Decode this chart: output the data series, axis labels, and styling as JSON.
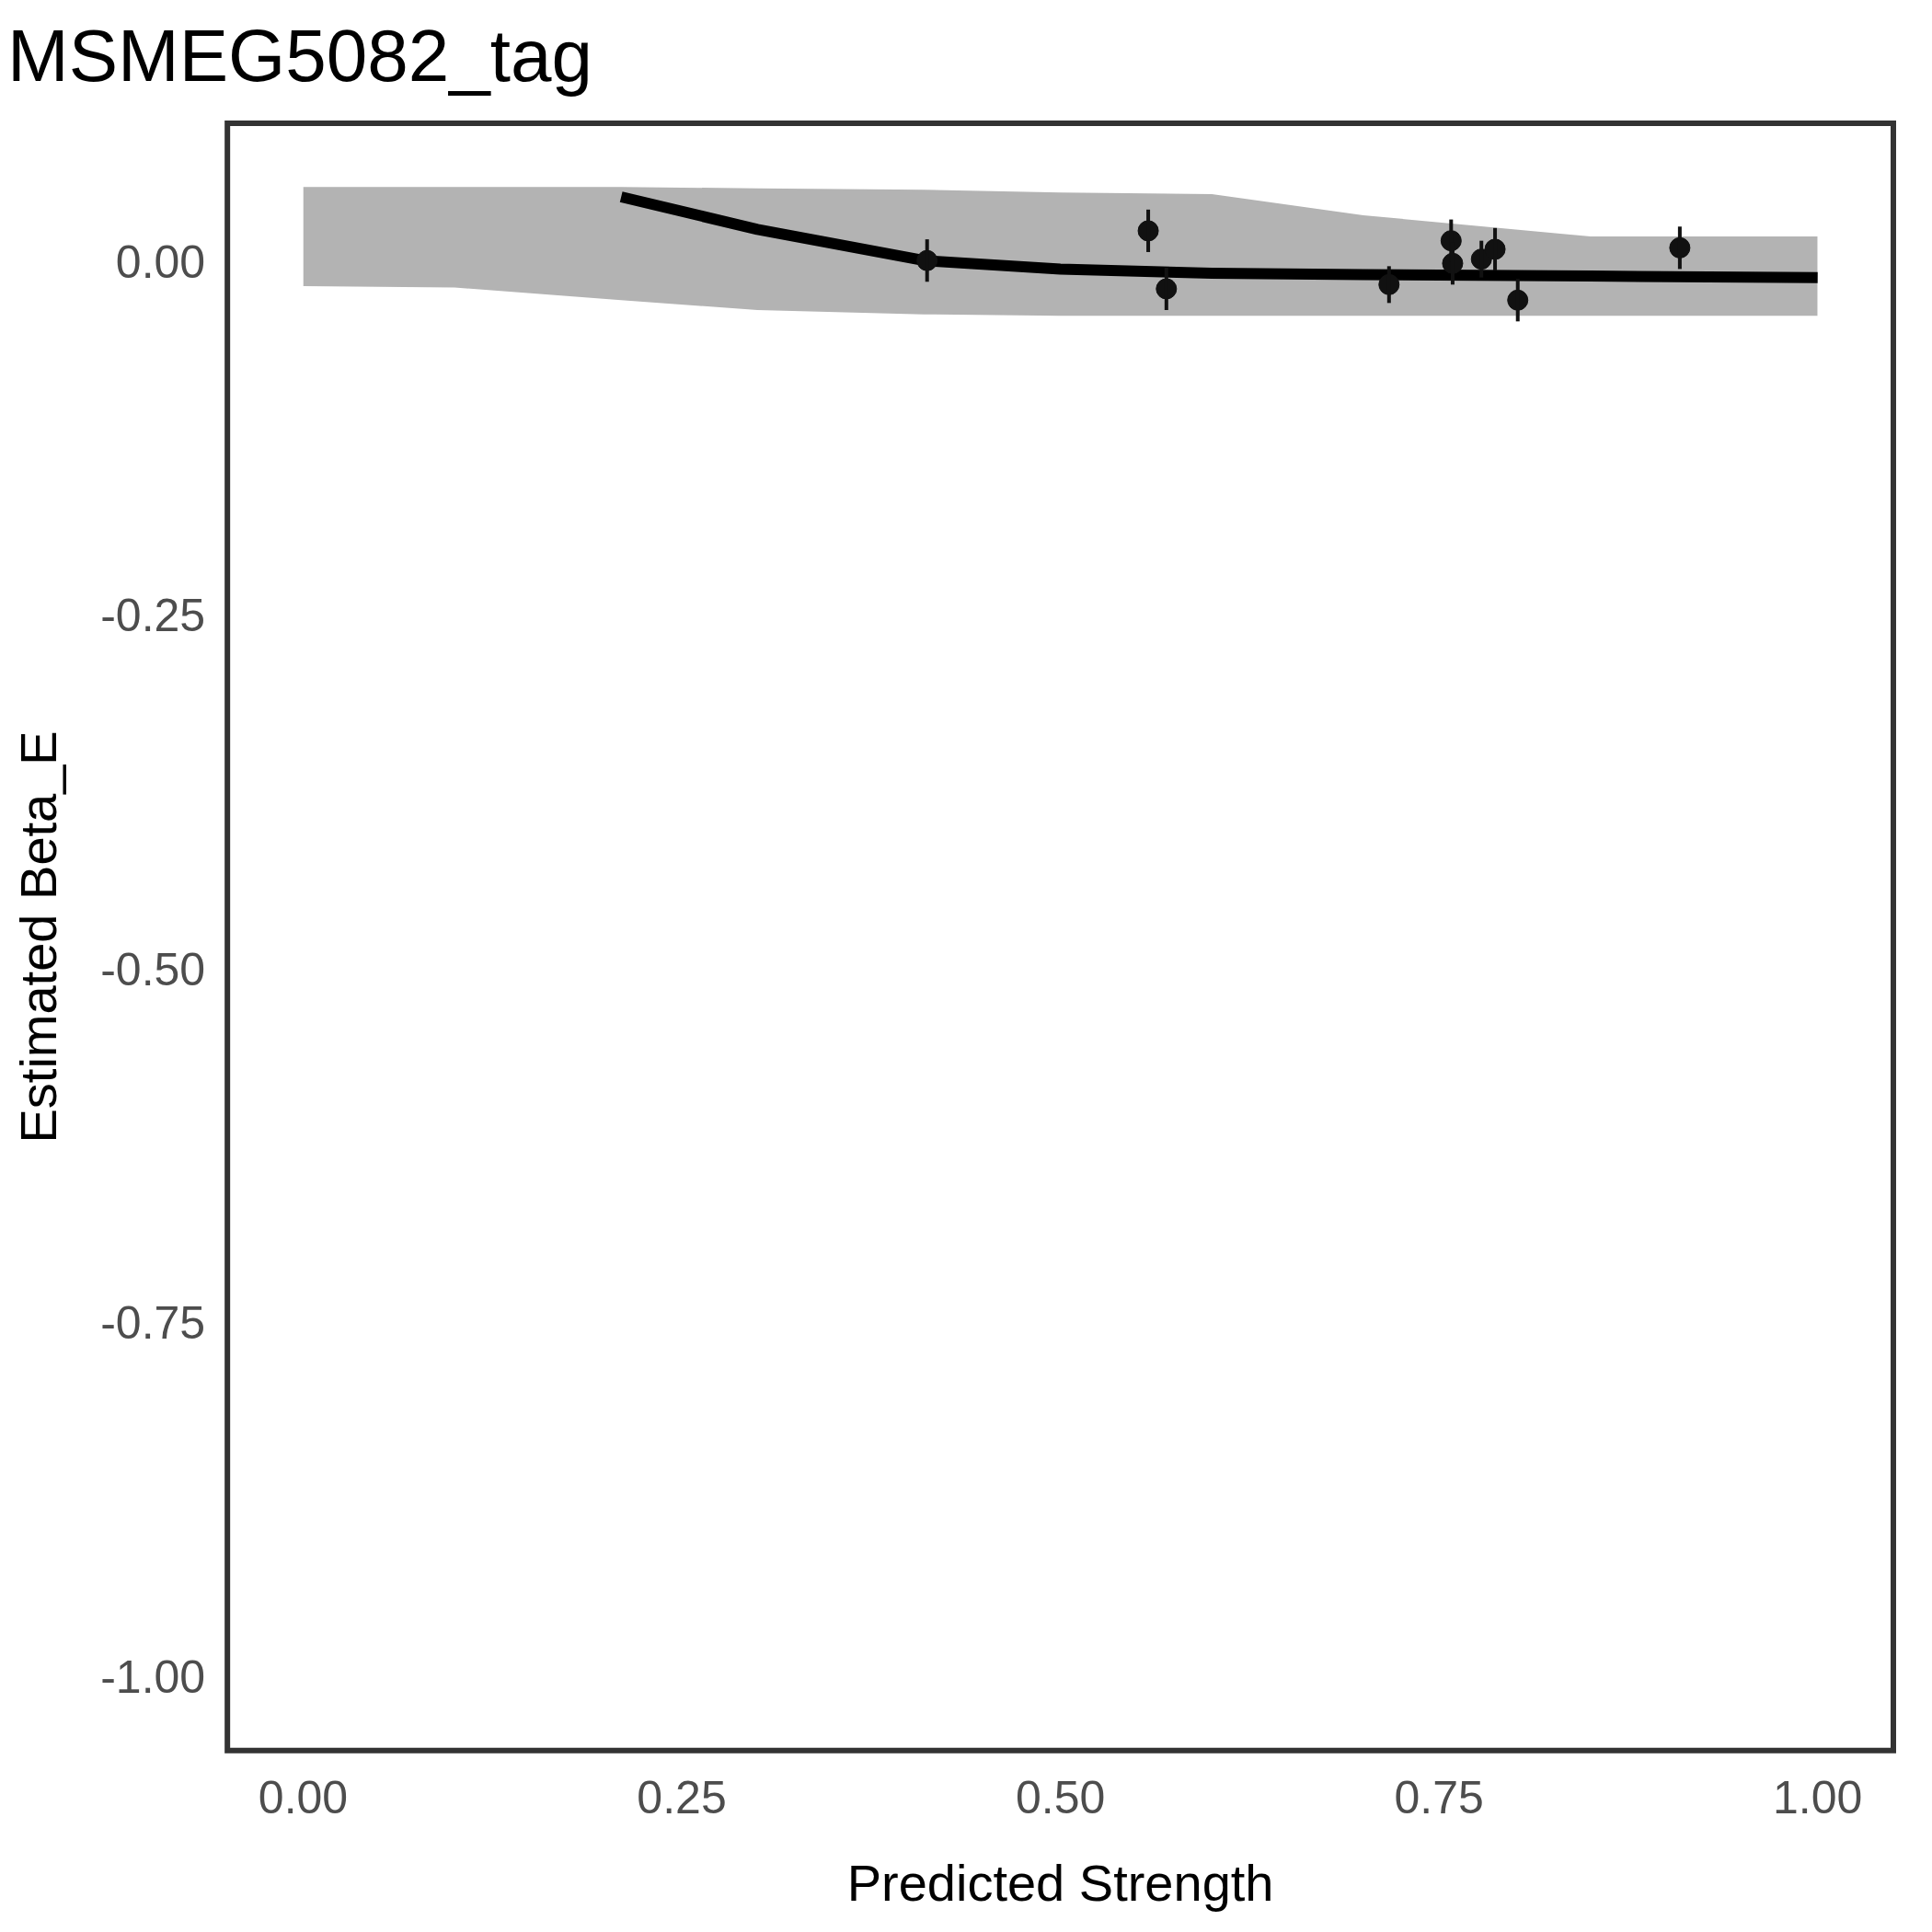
{
  "chart_data": {
    "type": "scatter",
    "title": "MSMEG5082_tag",
    "xlabel": "Predicted Strength",
    "ylabel": "Estimated Beta_E",
    "xlim": [
      -0.05,
      1.05
    ],
    "xticks": [
      {
        "value": 0,
        "label": "0.00"
      },
      {
        "value": 0.25,
        "label": "0.25"
      },
      {
        "value": 0.5,
        "label": "0.50"
      },
      {
        "value": 0.75,
        "label": "0.75"
      },
      {
        "value": 1,
        "label": "1.00"
      }
    ],
    "ylim": [
      -1.05,
      0.1
    ],
    "yticks": [
      {
        "value": -1,
        "label": "-1.00"
      },
      {
        "value": -0.75,
        "label": "-0.75"
      },
      {
        "value": -0.5,
        "label": "-0.50"
      },
      {
        "value": -0.25,
        "label": "-0.25"
      },
      {
        "value": 0,
        "label": "0.00"
      }
    ],
    "grid": false,
    "legend": false,
    "series": [
      {
        "type": "line",
        "color": "#000000",
        "x": [
          0,
          0.1,
          0.21,
          0.3,
          0.41,
          0.5,
          0.6,
          0.7,
          0.85,
          1.0
        ],
        "values": [
          null,
          null,
          0.048,
          0.025,
          0.003,
          -0.003,
          -0.006,
          -0.007,
          -0.008,
          -0.009
        ],
        "lower": [
          -0.015,
          -0.016,
          -0.025,
          -0.032,
          -0.035,
          -0.036,
          -0.036,
          -0.036,
          -0.036,
          -0.036
        ],
        "upper": [
          0.055,
          0.055,
          0.055,
          0.054,
          0.053,
          0.051,
          0.05,
          0.035,
          0.02,
          0.02
        ]
      },
      {
        "type": "scatter",
        "marker": "circle",
        "color": "#111111",
        "x": [
          0.412,
          0.558,
          0.57,
          0.717,
          0.758,
          0.759,
          0.778,
          0.787,
          0.802,
          0.909
        ],
        "values": [
          0.003,
          0.024,
          -0.017,
          -0.014,
          0.017,
          0.001,
          0.004,
          0.011,
          -0.025,
          0.012
        ],
        "errors": [
          0.015,
          0.015,
          0.015,
          0.013,
          0.015,
          0.015,
          0.013,
          0.015,
          0.015,
          0.015
        ]
      }
    ]
  }
}
